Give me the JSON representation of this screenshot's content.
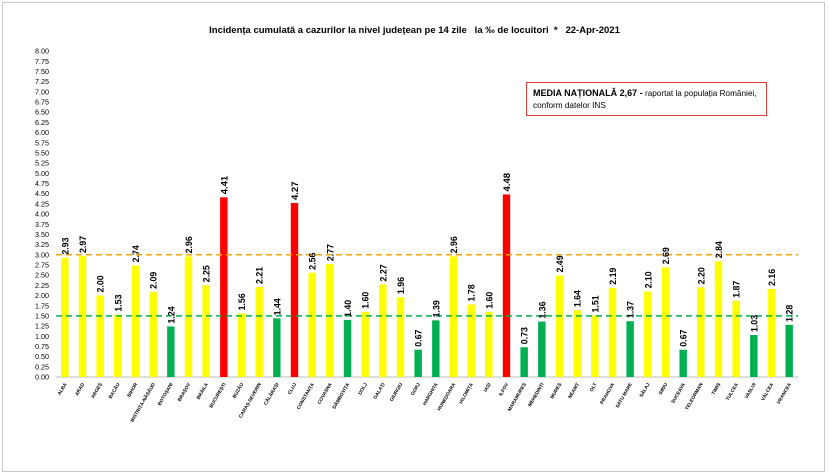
{
  "title": "Incidența cumulată a cazurilor la nivel județean pe 14 zile   la ‰ de locuitori  *   22-Apr-2021",
  "note": {
    "bold": "MEDIA NAȚIONALĂ 2,67 -",
    "text": " raportat la populația României, conform datelor INS"
  },
  "colors": {
    "yellow": "#ffff00",
    "green": "#00b050",
    "red": "#ff0000",
    "orange_line": "#f0a500",
    "green_line": "#00b050"
  },
  "chart_data": {
    "type": "bar",
    "title": "Incidența cumulată a cazurilor la nivel județean pe 14 zile   la ‰ de locuitori  *   22-Apr-2021",
    "xlabel": "",
    "ylabel": "",
    "ylim": [
      0,
      8
    ],
    "ytick_step": 0.25,
    "grid": false,
    "reference_lines": [
      {
        "value": 3.0,
        "color": "#f0a500",
        "style": "dashed"
      },
      {
        "value": 1.5,
        "color": "#00b050",
        "style": "dashed"
      }
    ],
    "categories": [
      "ALBA",
      "ARAD",
      "ARGEȘ",
      "BACĂU",
      "BIHOR",
      "BISTRIȚA-NĂSĂUD",
      "BOTOȘANI",
      "BRAȘOV",
      "BRĂILA",
      "BUCUREȘTI",
      "BUZĂU",
      "CARAȘ-SEVERIN",
      "CĂLĂRAȘI",
      "CLUJ",
      "CONSTANȚA",
      "COVASNA",
      "DÂMBOVIȚA",
      "DOLJ",
      "GALAȚI",
      "GIURGIU",
      "GORJ",
      "HARGHITA",
      "HUNEDOARA",
      "IALOMIȚA",
      "IAȘI",
      "ILFOV",
      "MARAMUREȘ",
      "MEHEDINȚI",
      "MUREȘ",
      "NEAMȚ",
      "OLT",
      "PRAHOVA",
      "SATU MARE",
      "SĂLAJ",
      "SIBIU",
      "SUCEAVA",
      "TELEORMAN",
      "TIMIȘ",
      "TULCEA",
      "VASLUI",
      "VÂLCEA",
      "VRANCEA"
    ],
    "values": [
      2.93,
      2.97,
      2.0,
      1.53,
      2.74,
      2.09,
      1.24,
      2.96,
      2.25,
      4.41,
      1.56,
      2.21,
      1.44,
      4.27,
      2.56,
      2.77,
      1.4,
      1.6,
      2.27,
      1.96,
      0.67,
      1.39,
      2.96,
      1.78,
      1.6,
      4.48,
      0.73,
      1.36,
      2.49,
      1.64,
      1.51,
      2.19,
      1.37,
      2.1,
      2.69,
      0.67,
      2.2,
      2.84,
      1.87,
      1.03,
      2.16,
      1.28
    ],
    "value_labels": [
      "2.93",
      "2.97",
      "2.00",
      "1.53",
      "2.74",
      "2.09",
      "1.24",
      "2.96",
      "2.25",
      "4.41",
      "1.56",
      "2.21",
      "1.44",
      "4.27",
      "2.56",
      "2.77",
      "1.40",
      "1.60",
      "2.27",
      "1.96",
      "0.67",
      "1.39",
      "2.96",
      "1.78",
      "1.60",
      "4.48",
      "0.73",
      "1.36",
      "2.49",
      "1.64",
      "1.51",
      "2.19",
      "1.37",
      "2.10",
      "2.69",
      "0.67",
      "2.20",
      "2.84",
      "1.87",
      "1.03",
      "2.16",
      "1.28"
    ],
    "bar_colors": [
      "yellow",
      "yellow",
      "yellow",
      "yellow",
      "yellow",
      "yellow",
      "green",
      "yellow",
      "yellow",
      "red",
      "yellow",
      "yellow",
      "green",
      "red",
      "yellow",
      "yellow",
      "green",
      "yellow",
      "yellow",
      "yellow",
      "green",
      "green",
      "yellow",
      "yellow",
      "yellow",
      "red",
      "green",
      "green",
      "yellow",
      "yellow",
      "yellow",
      "yellow",
      "green",
      "yellow",
      "yellow",
      "green",
      "yellow",
      "yellow",
      "yellow",
      "green",
      "yellow",
      "green"
    ],
    "yticks": [
      "0.00",
      "0.25",
      "0.50",
      "0.75",
      "1.00",
      "1.25",
      "1.50",
      "1.75",
      "2.00",
      "2.25",
      "2.50",
      "2.75",
      "3.00",
      "3.25",
      "3.50",
      "3.75",
      "4.00",
      "4.25",
      "4.50",
      "4.75",
      "5.00",
      "5.25",
      "5.50",
      "5.75",
      "6.00",
      "6.25",
      "6.50",
      "6.75",
      "7.00",
      "7.25",
      "7.50",
      "7.75",
      "8.00"
    ]
  }
}
